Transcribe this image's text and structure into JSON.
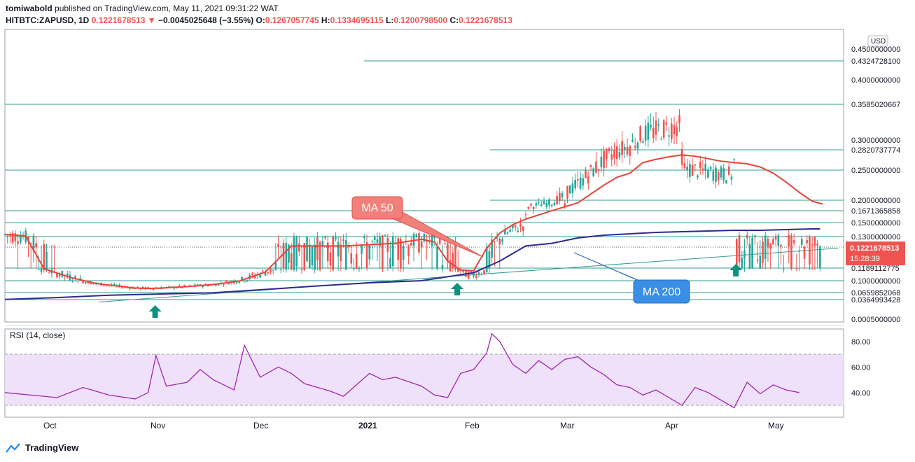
{
  "header": {
    "publisher": "tomiwabold",
    "published_line": "published on TradingView.com, May 11, 2021 09:31:22 WAT",
    "symbol": "HITBTC:ZAPUSD, 1D",
    "last": "0.1221678513",
    "change_arrow": "▼",
    "change": "−0.0045025648 (−3.55%)",
    "o_label": "O:",
    "o_value": "0.1267057745",
    "h_label": "H:",
    "h_value": "0.1334695115",
    "l_label": "L:",
    "l_value": "0.1200798500",
    "c_label": "C:",
    "c_value": "0.1221678513"
  },
  "footer": {
    "brand": "TradingView",
    "logo_icon": "tradingview-logo-icon"
  },
  "colors": {
    "up": "#26a69a",
    "down": "#ef5350",
    "ma50": "#e8443a",
    "ma200": "#2d2a8f",
    "levels": "#2f9e8f",
    "rsi": "#9c27b0",
    "rsi_band": "#f0e1fb",
    "price_tag": "#ef5350",
    "callout_red": "#f1807a",
    "callout_blue": "#3a8ee6",
    "arrow": "#0e9280"
  },
  "chart_data": [
    {
      "type": "candlestick",
      "title": "HITBTC:ZAPUSD, 1D",
      "currency_label": "USD",
      "x_tick_labels": [
        "Oct",
        "Nov",
        "Dec",
        "2021",
        "Feb",
        "Mar",
        "Apr",
        "May"
      ],
      "y_tick_labels": [
        "0.4500000000",
        "0.4000000000",
        "0.3000000000",
        "0.2500000000",
        "0.2000000000",
        "0.1500000000",
        "0.1000000000",
        "0.0005000000"
      ],
      "price_levels": [
        {
          "value": 0.43247281,
          "label": "0.4324728100"
        },
        {
          "value": 0.3585020667,
          "label": "0.3585020667"
        },
        {
          "value": 0.2820737774,
          "label": "0.2820737774"
        },
        {
          "value": 0.1671365858,
          "label": "0.1671365858"
        },
        {
          "value": 0.13,
          "label": "0.1300000000"
        },
        {
          "value": 0.1189112775,
          "label": "0.1189112775"
        },
        {
          "value": 0.0659852068,
          "label": "0.0659852068"
        },
        {
          "value": 0.0364993428,
          "label": "0.0364993428"
        }
      ],
      "last_price": {
        "value": 0.1221678513,
        "label": "0.1221678513",
        "countdown": "15:28:39"
      },
      "annotations": [
        "MA 50",
        "MA 200"
      ],
      "ylim": [
        0.0005,
        0.45
      ],
      "ma50": [
        [
          0,
          0.133
        ],
        [
          8,
          0.131
        ],
        [
          15,
          0.118
        ],
        [
          25,
          0.105
        ],
        [
          35,
          0.092
        ],
        [
          43,
          0.085
        ],
        [
          50,
          0.079
        ],
        [
          55,
          0.078
        ],
        [
          60,
          0.079
        ],
        [
          70,
          0.083
        ],
        [
          80,
          0.089
        ],
        [
          90,
          0.099
        ],
        [
          100,
          0.113
        ],
        [
          110,
          0.123
        ],
        [
          120,
          0.123
        ],
        [
          130,
          0.123
        ],
        [
          140,
          0.124
        ],
        [
          150,
          0.125
        ],
        [
          160,
          0.128
        ],
        [
          165,
          0.126
        ],
        [
          170,
          0.12
        ],
        [
          175,
          0.116
        ],
        [
          180,
          0.115
        ],
        [
          185,
          0.122
        ],
        [
          190,
          0.135
        ],
        [
          195,
          0.147
        ],
        [
          200,
          0.155
        ],
        [
          210,
          0.167
        ],
        [
          220,
          0.192
        ],
        [
          230,
          0.225
        ],
        [
          235,
          0.238
        ],
        [
          240,
          0.245
        ],
        [
          245,
          0.262
        ],
        [
          250,
          0.267
        ],
        [
          255,
          0.271
        ],
        [
          260,
          0.274
        ],
        [
          265,
          0.272
        ],
        [
          270,
          0.268
        ],
        [
          275,
          0.264
        ],
        [
          280,
          0.262
        ],
        [
          285,
          0.26
        ],
        [
          290,
          0.255
        ],
        [
          295,
          0.245
        ],
        [
          300,
          0.23
        ],
        [
          305,
          0.213
        ],
        [
          310,
          0.197
        ],
        [
          314,
          0.188
        ]
      ],
      "ma200": [
        [
          0,
          0.037
        ],
        [
          20,
          0.045
        ],
        [
          40,
          0.055
        ],
        [
          60,
          0.06
        ],
        [
          80,
          0.065
        ],
        [
          100,
          0.075
        ],
        [
          120,
          0.085
        ],
        [
          140,
          0.094
        ],
        [
          160,
          0.1
        ],
        [
          180,
          0.112
        ],
        [
          190,
          0.12
        ],
        [
          200,
          0.123
        ],
        [
          210,
          0.125
        ],
        [
          220,
          0.129
        ],
        [
          230,
          0.132
        ],
        [
          240,
          0.134
        ],
        [
          250,
          0.136
        ],
        [
          260,
          0.137
        ],
        [
          270,
          0.138
        ],
        [
          280,
          0.139
        ],
        [
          290,
          0.139
        ],
        [
          300,
          0.14
        ],
        [
          310,
          0.141
        ],
        [
          313,
          0.141
        ]
      ],
      "trendlines": [
        [
          [
            36,
            0.032
          ],
          [
            320,
            0.122
          ]
        ]
      ],
      "markers": [
        {
          "x": 55,
          "y": 0.018
        },
        {
          "x": 171,
          "y": 0.075
        },
        {
          "x": 278,
          "y": 0.1
        }
      ]
    },
    {
      "type": "line",
      "title": "RSI (14, close)",
      "y_tick_labels": [
        "80.00",
        "60.00",
        "40.00"
      ],
      "band": [
        30,
        70
      ],
      "ylim": [
        20,
        90
      ],
      "values": [
        [
          0,
          40
        ],
        [
          10,
          38
        ],
        [
          20,
          36
        ],
        [
          30,
          44
        ],
        [
          40,
          38
        ],
        [
          50,
          35
        ],
        [
          55,
          40
        ],
        [
          58,
          69
        ],
        [
          62,
          45
        ],
        [
          70,
          48
        ],
        [
          75,
          58
        ],
        [
          80,
          50
        ],
        [
          88,
          42
        ],
        [
          92,
          77
        ],
        [
          98,
          52
        ],
        [
          105,
          60
        ],
        [
          110,
          55
        ],
        [
          115,
          47
        ],
        [
          125,
          41
        ],
        [
          130,
          37
        ],
        [
          135,
          46
        ],
        [
          140,
          55
        ],
        [
          145,
          50
        ],
        [
          150,
          52
        ],
        [
          160,
          45
        ],
        [
          165,
          38
        ],
        [
          170,
          36
        ],
        [
          175,
          55
        ],
        [
          180,
          58
        ],
        [
          185,
          71
        ],
        [
          187,
          86
        ],
        [
          190,
          80
        ],
        [
          195,
          62
        ],
        [
          200,
          55
        ],
        [
          205,
          65
        ],
        [
          210,
          58
        ],
        [
          215,
          66
        ],
        [
          220,
          68
        ],
        [
          225,
          60
        ],
        [
          230,
          54
        ],
        [
          235,
          46
        ],
        [
          240,
          44
        ],
        [
          245,
          38
        ],
        [
          250,
          42
        ],
        [
          255,
          36
        ],
        [
          260,
          30
        ],
        [
          265,
          44
        ],
        [
          270,
          40
        ],
        [
          275,
          34
        ],
        [
          280,
          28
        ],
        [
          285,
          48
        ],
        [
          290,
          39
        ],
        [
          295,
          46
        ],
        [
          300,
          42
        ],
        [
          305,
          40
        ]
      ]
    }
  ]
}
